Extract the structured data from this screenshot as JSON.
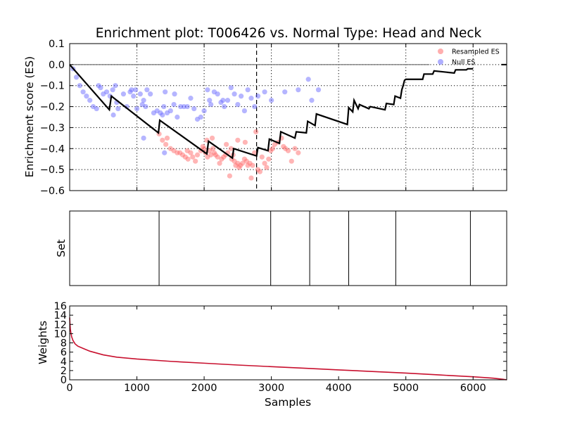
{
  "chart_data": [
    {
      "type": "line",
      "title": "Enrichment plot: T006426 vs. Normal Type: Head and Neck",
      "xlabel": "",
      "ylabel": "Enrichment score (ES)",
      "xlim": [
        0,
        6500
      ],
      "ylim": [
        -0.6,
        0.1
      ],
      "yticks": [
        "0.1",
        "0.0",
        "−0.1",
        "−0.2",
        "−0.3",
        "−0.4",
        "−0.5",
        "−0.6"
      ],
      "ytick_values": [
        0.1,
        0.0,
        -0.1,
        -0.2,
        -0.3,
        -0.4,
        -0.5,
        -0.6
      ],
      "xgrid_values": [
        1000,
        2000,
        3000,
        4000,
        5000,
        6000
      ],
      "grid": true,
      "legend": {
        "placement": "top-right",
        "entries": [
          {
            "label": "Resampled ES",
            "color": "#ff6b6b"
          },
          {
            "label": "Null ES",
            "color": "#6b6bff"
          }
        ]
      },
      "colors": {
        "es_line": "#000000",
        "resampled": "#ff6b6b",
        "null": "#6b6bff",
        "baseline": "#000000"
      },
      "max_deviation_x": 2780,
      "es_line": {
        "x": [
          0,
          590,
          620,
          1320,
          1340,
          2040,
          2065,
          2420,
          2440,
          2780,
          2800,
          2950,
          2970,
          3120,
          3140,
          3350,
          3370,
          3520,
          3540,
          3650,
          3670,
          4130,
          4150,
          4210,
          4230,
          4290,
          4310,
          4450,
          4470,
          4690,
          4710,
          4820,
          4840,
          4920,
          4940,
          4960,
          4980,
          5000,
          5250,
          5270,
          5400,
          5420,
          5720,
          5740,
          5900,
          5920,
          6000
        ],
        "y": [
          0.0,
          -0.215,
          -0.15,
          -0.325,
          -0.265,
          -0.425,
          -0.365,
          -0.445,
          -0.4,
          -0.435,
          -0.395,
          -0.41,
          -0.355,
          -0.375,
          -0.32,
          -0.35,
          -0.32,
          -0.325,
          -0.27,
          -0.29,
          -0.235,
          -0.285,
          -0.205,
          -0.225,
          -0.17,
          -0.21,
          -0.19,
          -0.21,
          -0.2,
          -0.215,
          -0.185,
          -0.19,
          -0.15,
          -0.16,
          -0.12,
          -0.1,
          -0.075,
          -0.07,
          -0.07,
          -0.045,
          -0.045,
          -0.03,
          -0.04,
          -0.025,
          -0.025,
          -0.02,
          -0.02
        ]
      },
      "resampled_points": {
        "x": [
          1330,
          1380,
          1430,
          1450,
          1500,
          1550,
          1600,
          1640,
          1680,
          1720,
          1760,
          1800,
          1830,
          1870,
          1900,
          1950,
          1980,
          2000,
          2020,
          2050,
          2080,
          2100,
          2130,
          2150,
          2170,
          2200,
          2230,
          2260,
          2290,
          2320,
          2350,
          2380,
          2400,
          2410,
          2430,
          2450,
          2470,
          2500,
          2520,
          2540,
          2570,
          2600,
          2630,
          2650,
          2680,
          2700,
          2720,
          2750,
          2770,
          2800,
          2830,
          2860,
          2900,
          2930,
          2960,
          2990,
          3020,
          3050,
          3100,
          3150,
          3180,
          3210,
          3250,
          3300,
          3350,
          3400,
          2500,
          2610,
          2330,
          2040,
          2120,
          1750
        ],
        "y": [
          -0.33,
          -0.36,
          -0.38,
          -0.35,
          -0.4,
          -0.41,
          -0.42,
          -0.42,
          -0.43,
          -0.44,
          -0.45,
          -0.42,
          -0.44,
          -0.46,
          -0.43,
          -0.41,
          -0.39,
          -0.4,
          -0.42,
          -0.44,
          -0.41,
          -0.43,
          -0.4,
          -0.42,
          -0.43,
          -0.44,
          -0.47,
          -0.45,
          -0.44,
          -0.43,
          -0.42,
          -0.53,
          -0.4,
          -0.45,
          -0.43,
          -0.46,
          -0.48,
          -0.47,
          -0.49,
          -0.48,
          -0.47,
          -0.45,
          -0.46,
          -0.48,
          -0.47,
          -0.54,
          -0.48,
          -0.42,
          -0.32,
          -0.5,
          -0.51,
          -0.44,
          -0.47,
          -0.49,
          -0.45,
          -0.41,
          -0.4,
          -0.38,
          -0.37,
          -0.35,
          -0.39,
          -0.4,
          -0.41,
          -0.46,
          -0.4,
          -0.42,
          -0.36,
          -0.37,
          -0.38,
          -0.36,
          -0.35,
          -0.41
        ]
      },
      "null_points": {
        "x": [
          50,
          100,
          150,
          200,
          250,
          300,
          350,
          400,
          430,
          460,
          500,
          550,
          600,
          650,
          680,
          700,
          720,
          800,
          850,
          900,
          920,
          950,
          980,
          1000,
          1050,
          1080,
          1100,
          1130,
          1150,
          1200,
          1250,
          1300,
          1350,
          1380,
          1400,
          1420,
          1450,
          1500,
          1550,
          1600,
          1650,
          1700,
          1750,
          1800,
          1850,
          1900,
          1950,
          2000,
          2050,
          2080,
          2100,
          2150,
          2200,
          2250,
          2280,
          2300,
          2350,
          2400,
          2450,
          2500,
          2550,
          2600,
          2650,
          2700,
          2750,
          2800,
          2900,
          3000,
          3200,
          3400,
          3600,
          3700,
          3550,
          640,
          1100,
          1410,
          1560
        ],
        "y": [
          -0.02,
          -0.06,
          -0.1,
          -0.13,
          -0.15,
          -0.17,
          -0.2,
          -0.21,
          -0.1,
          -0.11,
          -0.14,
          -0.13,
          -0.15,
          -0.24,
          -0.1,
          -0.18,
          -0.21,
          -0.14,
          -0.2,
          -0.13,
          -0.12,
          -0.15,
          -0.12,
          -0.21,
          -0.14,
          -0.19,
          -0.17,
          -0.2,
          -0.12,
          -0.14,
          -0.23,
          -0.22,
          -0.23,
          -0.24,
          -0.2,
          -0.13,
          -0.23,
          -0.22,
          -0.19,
          -0.25,
          -0.2,
          -0.2,
          -0.2,
          -0.16,
          -0.21,
          -0.26,
          -0.25,
          -0.22,
          -0.12,
          -0.17,
          -0.19,
          -0.13,
          -0.14,
          -0.18,
          -0.17,
          -0.2,
          -0.17,
          -0.11,
          -0.14,
          -0.19,
          -0.15,
          -0.22,
          -0.12,
          -0.16,
          -0.2,
          -0.15,
          -0.13,
          -0.17,
          -0.13,
          -0.12,
          -0.17,
          -0.12,
          -0.07,
          -0.12,
          -0.35,
          -0.42,
          -0.14
        ]
      }
    },
    {
      "type": "table",
      "ylabel": "Set",
      "xlim": [
        0,
        6500
      ],
      "set_positions": [
        1330,
        2990,
        3570,
        4150,
        4850,
        5960
      ],
      "colors": {
        "bar": "#000000"
      }
    },
    {
      "type": "area",
      "xlabel": "Samples",
      "ylabel": "Weights",
      "xlim": [
        0,
        6500
      ],
      "ylim": [
        0,
        16
      ],
      "xticks": [
        "0",
        "1000",
        "2000",
        "3000",
        "4000",
        "5000",
        "6000"
      ],
      "xtick_values": [
        0,
        1000,
        2000,
        3000,
        4000,
        5000,
        6000
      ],
      "yticks": [
        "16",
        "14",
        "12",
        "10",
        "8",
        "6",
        "4",
        "2",
        "0"
      ],
      "ytick_values": [
        16,
        14,
        12,
        10,
        8,
        6,
        4,
        2,
        0
      ],
      "colors": {
        "line": "#c8102e"
      },
      "x": [
        0,
        5,
        10,
        20,
        30,
        50,
        80,
        120,
        200,
        300,
        500,
        700,
        1000,
        1500,
        2000,
        2500,
        3000,
        3500,
        4000,
        4500,
        5000,
        5500,
        6000,
        6300,
        6450,
        6500
      ],
      "y": [
        13.5,
        12.0,
        11.0,
        10.0,
        9.3,
        8.5,
        7.8,
        7.3,
        6.8,
        6.2,
        5.4,
        4.9,
        4.5,
        4.0,
        3.6,
        3.2,
        2.85,
        2.5,
        2.15,
        1.8,
        1.45,
        1.05,
        0.65,
        0.35,
        0.1,
        0.0
      ]
    }
  ]
}
